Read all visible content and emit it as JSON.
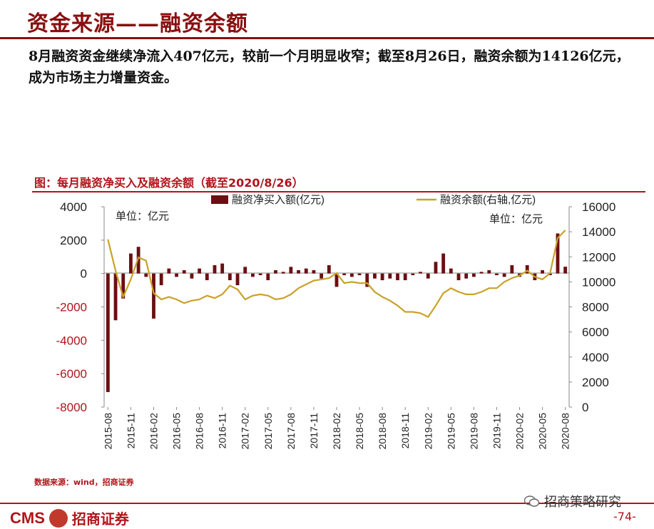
{
  "header": {
    "title": "资金来源——融资余额",
    "summary": "8月融资资金继续净流入407亿元，较前一个月明显收窄；截至8月26日，融资余额为14126亿元，成为市场主力增量资金。"
  },
  "chart_title": "图：每月融资净买入及融资余额（截至2020/8/26）",
  "source": "数据来源：wind，招商证券",
  "footer": {
    "logo_cms": "CMS",
    "logo_cn": "招商证券",
    "wechat": "招商策略研究",
    "page": "-74-"
  },
  "colors": {
    "bar": "#6b0f12",
    "line": "#c9a227",
    "accent": "#b0141b"
  },
  "chart_data": {
    "type": "bar+line",
    "legend": [
      "融资净买入额(亿元)",
      "融资余额(右轴,亿元)"
    ],
    "unit_left": "单位：亿元",
    "unit_right": "单位：亿元",
    "y_left": {
      "min": -8000,
      "max": 4000,
      "ticks": [
        4000,
        2000,
        0,
        -2000,
        -4000,
        -6000,
        -8000
      ]
    },
    "y_right": {
      "min": 0,
      "max": 16000,
      "ticks": [
        16000,
        14000,
        12000,
        10000,
        8000,
        6000,
        4000,
        2000,
        0
      ]
    },
    "x_labels": [
      "2015-08",
      "2015-11",
      "2016-02",
      "2016-05",
      "2016-08",
      "2016-11",
      "2017-02",
      "2017-05",
      "2017-08",
      "2017-11",
      "2018-02",
      "2018-05",
      "2018-08",
      "2018-11",
      "2019-02",
      "2019-05",
      "2019-08",
      "2019-11",
      "2020-02",
      "2020-05",
      "2020-08"
    ],
    "months": [
      "2015-08",
      "2015-09",
      "2015-10",
      "2015-11",
      "2015-12",
      "2016-01",
      "2016-02",
      "2016-03",
      "2016-04",
      "2016-05",
      "2016-06",
      "2016-07",
      "2016-08",
      "2016-09",
      "2016-10",
      "2016-11",
      "2016-12",
      "2017-01",
      "2017-02",
      "2017-03",
      "2017-04",
      "2017-05",
      "2017-06",
      "2017-07",
      "2017-08",
      "2017-09",
      "2017-10",
      "2017-11",
      "2017-12",
      "2018-01",
      "2018-02",
      "2018-03",
      "2018-04",
      "2018-05",
      "2018-06",
      "2018-07",
      "2018-08",
      "2018-09",
      "2018-10",
      "2018-11",
      "2018-12",
      "2019-01",
      "2019-02",
      "2019-03",
      "2019-04",
      "2019-05",
      "2019-06",
      "2019-07",
      "2019-08",
      "2019-09",
      "2019-10",
      "2019-11",
      "2019-12",
      "2020-01",
      "2020-02",
      "2020-03",
      "2020-04",
      "2020-05",
      "2020-06",
      "2020-07",
      "2020-08"
    ],
    "net_buy": [
      -7100,
      -2800,
      -1500,
      1200,
      1600,
      -200,
      -2700,
      -700,
      300,
      -200,
      200,
      -300,
      300,
      -400,
      500,
      600,
      -400,
      -700,
      400,
      -200,
      -100,
      -400,
      200,
      100,
      400,
      200,
      300,
      200,
      -300,
      500,
      -800,
      -100,
      -200,
      -100,
      -800,
      -300,
      -400,
      -300,
      -400,
      -400,
      -100,
      100,
      -300,
      700,
      1200,
      300,
      -400,
      -300,
      -200,
      100,
      200,
      -100,
      -200,
      500,
      -200,
      500,
      -400,
      200,
      -100,
      2400,
      407
    ],
    "balance": [
      13400,
      10900,
      8800,
      10200,
      11950,
      11700,
      9100,
      8600,
      8800,
      8600,
      8300,
      8500,
      8600,
      8900,
      8700,
      9000,
      9700,
      9400,
      8600,
      8900,
      9000,
      8900,
      8600,
      8700,
      9000,
      9500,
      9800,
      10100,
      10200,
      10300,
      10700,
      9900,
      10000,
      9900,
      9900,
      9200,
      8800,
      8500,
      8100,
      7600,
      7600,
      7500,
      7200,
      8100,
      9100,
      9500,
      9200,
      9000,
      9000,
      9200,
      9500,
      9500,
      10000,
      10300,
      10500,
      10900,
      10400,
      10200,
      10700,
      13500,
      14126
    ]
  }
}
